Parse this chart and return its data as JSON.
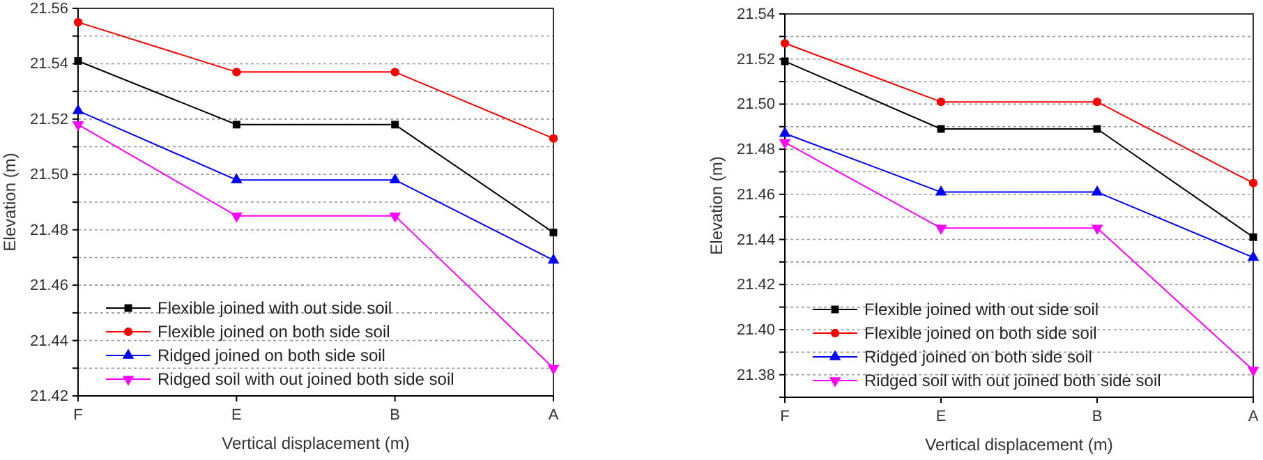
{
  "chart_data": [
    {
      "type": "line",
      "xlabel": "Vertical displacement (m)",
      "ylabel": "Elevation (m)",
      "categories": [
        "F",
        "E",
        "B",
        "A"
      ],
      "ylim": [
        21.42,
        21.56
      ],
      "yticks": [
        21.42,
        {
          "value": 21.43,
          "label": null
        },
        21.44,
        {
          "value": 21.45,
          "label": null
        },
        21.46,
        {
          "value": 21.47,
          "label": null
        },
        21.48,
        {
          "value": 21.49,
          "label": null
        },
        {
          "value": 21.5,
          "label": "21.50"
        },
        {
          "value": 21.51,
          "label": null
        },
        21.52,
        {
          "value": 21.53,
          "label": null
        },
        21.54,
        {
          "value": 21.55,
          "label": null
        },
        21.56
      ],
      "grid": "y",
      "legend": "bottom left",
      "line_style": "solid",
      "series": [
        {
          "name": "Flexible joined with out side soil",
          "color": "#000000",
          "marker": "square",
          "values": [
            21.541,
            21.518,
            21.518,
            21.479
          ]
        },
        {
          "name": "Flexible joined on both side soil",
          "color": "#ff0000",
          "marker": "circle",
          "values": [
            21.555,
            21.537,
            21.537,
            21.513
          ]
        },
        {
          "name": "Ridged joined on both side soil",
          "color": "#0000ff",
          "marker": "triangle",
          "values": [
            21.523,
            21.498,
            21.498,
            21.469
          ]
        },
        {
          "name": "Ridged soil with out joined both side soil",
          "color": "#ff00ff",
          "marker": "triangle-down",
          "values": [
            21.518,
            21.485,
            21.485,
            21.43
          ]
        }
      ]
    },
    {
      "type": "line",
      "xlabel": "Vertical displacement (m)",
      "ylabel": "Elevation (m)",
      "categories": [
        "F",
        "E",
        "B",
        "A"
      ],
      "ylim": [
        21.37,
        21.54
      ],
      "yticks": [
        {
          "value": 21.37,
          "label": null
        },
        21.38,
        {
          "value": 21.39,
          "label": null
        },
        {
          "value": 21.4,
          "label": "21.40"
        },
        {
          "value": 21.41,
          "label": null
        },
        21.42,
        {
          "value": 21.43,
          "label": null
        },
        21.44,
        {
          "value": 21.45,
          "label": null
        },
        21.46,
        {
          "value": 21.47,
          "label": null
        },
        21.48,
        {
          "value": 21.49,
          "label": null
        },
        {
          "value": 21.5,
          "label": "21.50"
        },
        {
          "value": 21.51,
          "label": null
        },
        21.52,
        {
          "value": 21.53,
          "label": null
        },
        21.54
      ],
      "grid": "y",
      "legend": "bottom left",
      "line_style": "solid",
      "series": [
        {
          "name": "Flexible joined with out side soil",
          "color": "#000000",
          "marker": "square",
          "values": [
            21.519,
            21.489,
            21.489,
            21.441
          ]
        },
        {
          "name": "Flexible joined on both side soil",
          "color": "#ff0000",
          "marker": "circle",
          "values": [
            21.527,
            21.501,
            21.501,
            21.465
          ]
        },
        {
          "name": "Ridged joined on both side soil",
          "color": "#0000ff",
          "marker": "triangle",
          "values": [
            21.487,
            21.461,
            21.461,
            21.432
          ]
        },
        {
          "name": "Ridged soil with out joined both side soil",
          "color": "#ff00ff",
          "marker": "triangle-down",
          "values": [
            21.483,
            21.445,
            21.445,
            21.382
          ]
        }
      ]
    }
  ]
}
